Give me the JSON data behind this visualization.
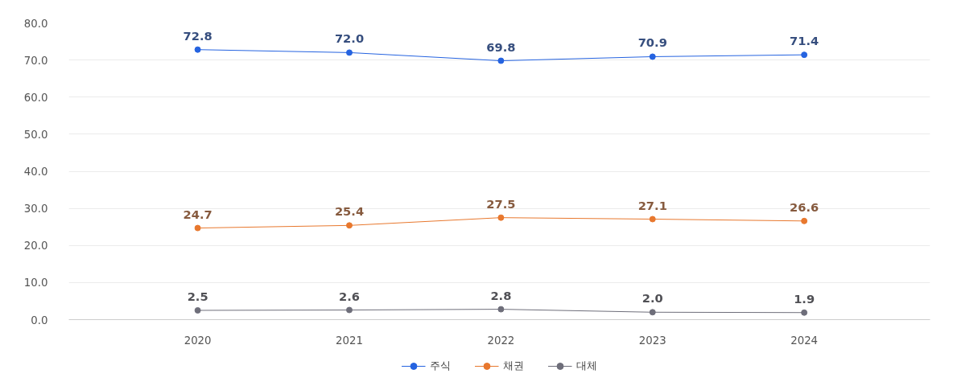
{
  "chart_data": {
    "type": "line",
    "categories": [
      "2020",
      "2021",
      "2022",
      "2023",
      "2024"
    ],
    "series": [
      {
        "name": "주식",
        "color": "#2563e0",
        "values": [
          72.8,
          72.0,
          69.8,
          70.9,
          71.4
        ],
        "value_labels": [
          "72.8",
          "72.0",
          "69.8",
          "70.9",
          "71.4"
        ]
      },
      {
        "name": "채권",
        "color": "#e8782e",
        "values": [
          24.7,
          25.4,
          27.5,
          27.1,
          26.6
        ],
        "value_labels": [
          "24.7",
          "25.4",
          "27.5",
          "27.1",
          "26.6"
        ]
      },
      {
        "name": "대체",
        "color": "#6e6e7a",
        "values": [
          2.5,
          2.6,
          2.8,
          2.0,
          1.9
        ],
        "value_labels": [
          "2.5",
          "2.6",
          "2.8",
          "2.0",
          "1.9"
        ]
      }
    ],
    "ylim": [
      0,
      80
    ],
    "yticks": [
      {
        "value": 0,
        "label": "0.0"
      },
      {
        "value": 10,
        "label": "10.0"
      },
      {
        "value": 20,
        "label": "20.0"
      },
      {
        "value": 30,
        "label": "30.0"
      },
      {
        "value": 40,
        "label": "40.0"
      },
      {
        "value": 50,
        "label": "50.0"
      },
      {
        "value": 60,
        "label": "60.0"
      },
      {
        "value": 70,
        "label": "70.0"
      },
      {
        "value": 80,
        "label": "80.0"
      }
    ],
    "grid": "y",
    "legend": "bottom",
    "marker": "circle",
    "line_style": "solid",
    "data_labels": true
  }
}
